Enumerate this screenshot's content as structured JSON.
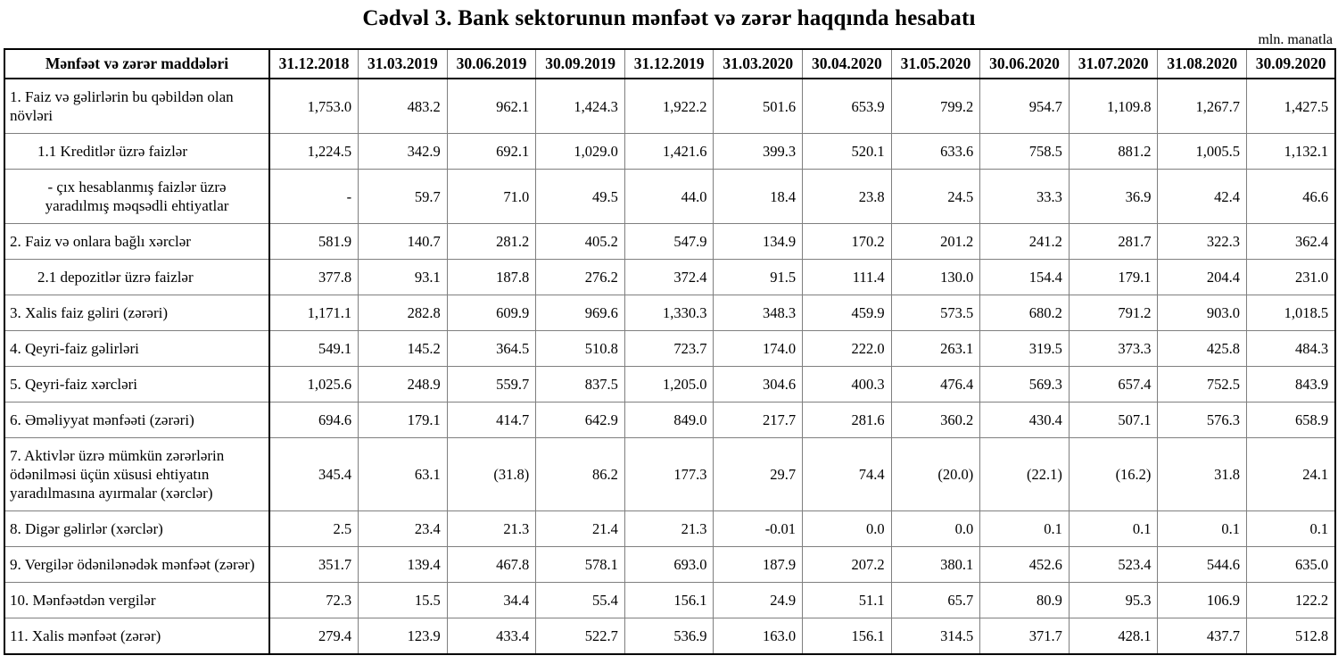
{
  "title": "Cədvəl 3. Bank sektorunun mənfəət və zərər haqqında hesabatı",
  "unit_note": "mln. manatla",
  "colors": {
    "background": "#ffffff",
    "text": "#000000",
    "grid_inner": "#7f7f7f",
    "grid_strong": "#000000"
  },
  "table": {
    "label_header": "Mənfəət və zərər maddələri",
    "columns": [
      "31.12.2018",
      "31.03.2019",
      "30.06.2019",
      "30.09.2019",
      "31.12.2019",
      "31.03.2020",
      "30.04.2020",
      "31.05.2020",
      "30.06.2020",
      "31.07.2020",
      "31.08.2020",
      "30.09.2020"
    ],
    "rows": [
      {
        "label": "1. Faiz və gəlirlərin bu qəbildən olan növləri",
        "style": "main",
        "values": [
          "1,753.0",
          "483.2",
          "962.1",
          "1,424.3",
          "1,922.2",
          "501.6",
          "653.9",
          "799.2",
          "954.7",
          "1,109.8",
          "1,267.7",
          "1,427.5"
        ]
      },
      {
        "label": "1.1 Kreditlər üzrə faizlər",
        "style": "sub",
        "values": [
          "1,224.5",
          "342.9",
          "692.1",
          "1,029.0",
          "1,421.6",
          "399.3",
          "520.1",
          "633.6",
          "758.5",
          "881.2",
          "1,005.5",
          "1,132.1"
        ]
      },
      {
        "label": "-  çıx hesablanmış faizlər üzrə yaradılmış məqsədli ehtiyatlar",
        "style": "sub-center",
        "values": [
          "-",
          "59.7",
          "71.0",
          "49.5",
          "44.0",
          "18.4",
          "23.8",
          "24.5",
          "33.3",
          "36.9",
          "42.4",
          "46.6"
        ]
      },
      {
        "label": "2. Faiz və onlara bağlı xərclər",
        "style": "main",
        "values": [
          "581.9",
          "140.7",
          "281.2",
          "405.2",
          "547.9",
          "134.9",
          "170.2",
          "201.2",
          "241.2",
          "281.7",
          "322.3",
          "362.4"
        ]
      },
      {
        "label": "2.1 depozitlər üzrə faizlər",
        "style": "sub",
        "values": [
          "377.8",
          "93.1",
          "187.8",
          "276.2",
          "372.4",
          "91.5",
          "111.4",
          "130.0",
          "154.4",
          "179.1",
          "204.4",
          "231.0"
        ]
      },
      {
        "label": "3. Xalis faiz gəliri (zərəri)",
        "style": "main",
        "values": [
          "1,171.1",
          "282.8",
          "609.9",
          "969.6",
          "1,330.3",
          "348.3",
          "459.9",
          "573.5",
          "680.2",
          "791.2",
          "903.0",
          "1,018.5"
        ]
      },
      {
        "label": "4. Qeyri-faiz gəlirləri",
        "style": "main",
        "values": [
          "549.1",
          "145.2",
          "364.5",
          "510.8",
          "723.7",
          "174.0",
          "222.0",
          "263.1",
          "319.5",
          "373.3",
          "425.8",
          "484.3"
        ]
      },
      {
        "label": "5. Qeyri-faiz xərcləri",
        "style": "main",
        "values": [
          "1,025.6",
          "248.9",
          "559.7",
          "837.5",
          "1,205.0",
          "304.6",
          "400.3",
          "476.4",
          "569.3",
          "657.4",
          "752.5",
          "843.9"
        ]
      },
      {
        "label": "6. Əməliyyat mənfəəti (zərəri)",
        "style": "main",
        "values": [
          "694.6",
          "179.1",
          "414.7",
          "642.9",
          "849.0",
          "217.7",
          "281.6",
          "360.2",
          "430.4",
          "507.1",
          "576.3",
          "658.9"
        ]
      },
      {
        "label": "7. Aktivlər üzrə mümkün zərərlərin ödənilməsi üçün xüsusi ehtiyatın yaradılmasına ayırmalar (xərclər)",
        "style": "main",
        "values": [
          "345.4",
          "63.1",
          "(31.8)",
          "86.2",
          "177.3",
          "29.7",
          "74.4",
          "(20.0)",
          "(22.1)",
          "(16.2)",
          "31.8",
          "24.1"
        ]
      },
      {
        "label": "8. Digər gəlirlər (xərclər)",
        "style": "main",
        "values": [
          "2.5",
          "23.4",
          "21.3",
          "21.4",
          "21.3",
          "-0.01",
          "0.0",
          "0.0",
          "0.1",
          "0.1",
          "0.1",
          "0.1"
        ]
      },
      {
        "label": "9. Vergilər ödənilənədək mənfəət (zərər)",
        "style": "main",
        "values": [
          "351.7",
          "139.4",
          "467.8",
          "578.1",
          "693.0",
          "187.9",
          "207.2",
          "380.1",
          "452.6",
          "523.4",
          "544.6",
          "635.0"
        ]
      },
      {
        "label": "10. Mənfəətdən vergilər",
        "style": "main",
        "values": [
          "72.3",
          "15.5",
          "34.4",
          "55.4",
          "156.1",
          "24.9",
          "51.1",
          "65.7",
          "80.9",
          "95.3",
          "106.9",
          "122.2"
        ]
      },
      {
        "label": "11. Xalis mənfəət (zərər)",
        "style": "main",
        "values": [
          "279.4",
          "123.9",
          "433.4",
          "522.7",
          "536.9",
          "163.0",
          "156.1",
          "314.5",
          "371.7",
          "428.1",
          "437.7",
          "512.8"
        ]
      }
    ]
  }
}
